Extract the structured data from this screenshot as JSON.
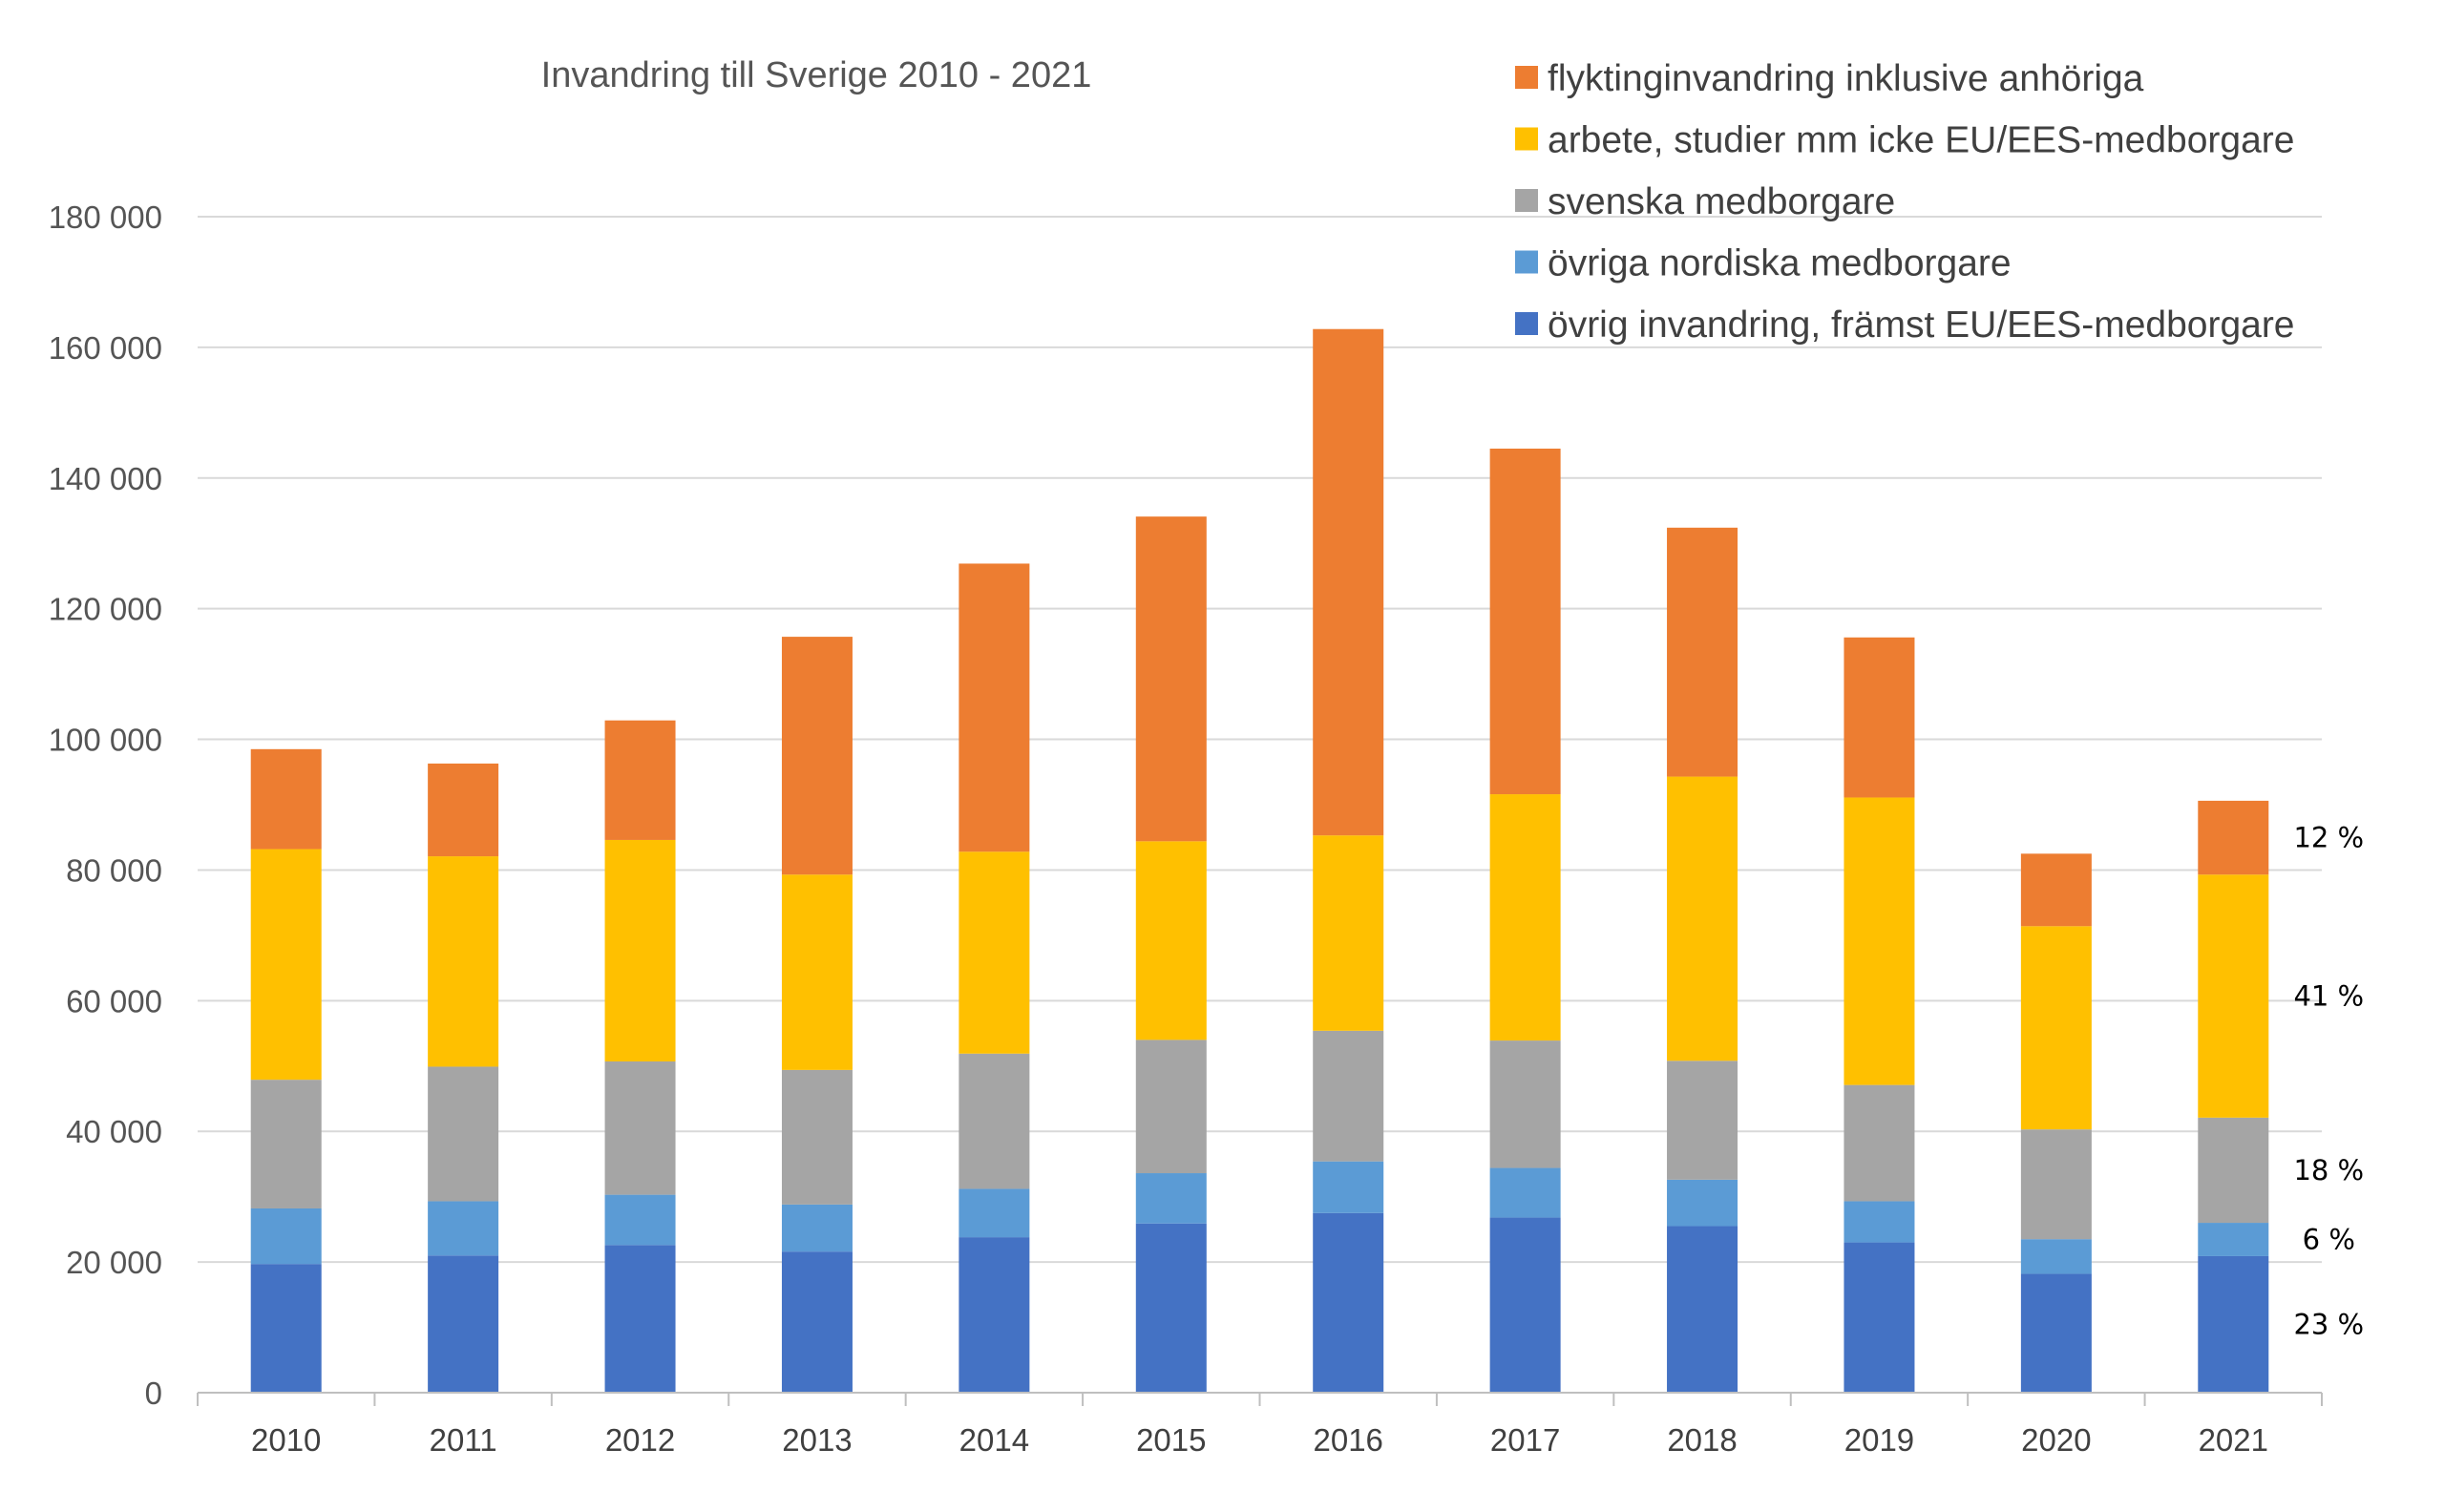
{
  "chart_data": {
    "type": "bar",
    "stacked": true,
    "title": "Invandring till Sverige 2010 - 2021",
    "xlabel": "",
    "ylabel": "",
    "ylim": [
      0,
      180000
    ],
    "yticks": [
      0,
      20000,
      40000,
      60000,
      80000,
      100000,
      120000,
      140000,
      160000,
      180000
    ],
    "ytick_labels": [
      "0",
      "20 000",
      "40 000",
      "60 000",
      "80 000",
      "100 000",
      "120 000",
      "140 000",
      "160 000",
      "180 000"
    ],
    "grid": true,
    "legend_position": "top-right",
    "categories": [
      "2010",
      "2011",
      "2012",
      "2013",
      "2014",
      "2015",
      "2016",
      "2017",
      "2018",
      "2019",
      "2020",
      "2021"
    ],
    "series": [
      {
        "name": "övrig invandring, främst EU/EES-medborgare",
        "color": "#4472C4",
        "values": [
          19700,
          21000,
          22600,
          21600,
          23800,
          25900,
          27500,
          26800,
          25500,
          23000,
          18200,
          20900
        ]
      },
      {
        "name": "övriga nordiska medborgare",
        "color": "#5B9BD5",
        "values": [
          8500,
          8300,
          7700,
          7200,
          7400,
          7700,
          7900,
          7600,
          7100,
          6300,
          5300,
          5100
        ]
      },
      {
        "name": "svenska medborgare",
        "color": "#A5A5A5",
        "values": [
          19700,
          20600,
          20400,
          20600,
          20700,
          20400,
          20000,
          19500,
          18200,
          17800,
          16800,
          16100
        ]
      },
      {
        "name": "arbete, studier mm icke EU/EES-medborgare",
        "color": "#FFC000",
        "values": [
          35300,
          32200,
          33900,
          29900,
          30900,
          30400,
          29900,
          37700,
          43500,
          44000,
          31100,
          37200
        ]
      },
      {
        "name": "flyktinginvandring inklusive anhöriga",
        "color": "#ED7D31",
        "values": [
          15300,
          14200,
          18300,
          36400,
          44100,
          49700,
          77500,
          52900,
          38100,
          24500,
          11100,
          11300
        ]
      }
    ],
    "annotations_2021": [
      "23 %",
      "6 %",
      "18 %",
      "41 %",
      "12 %"
    ]
  }
}
